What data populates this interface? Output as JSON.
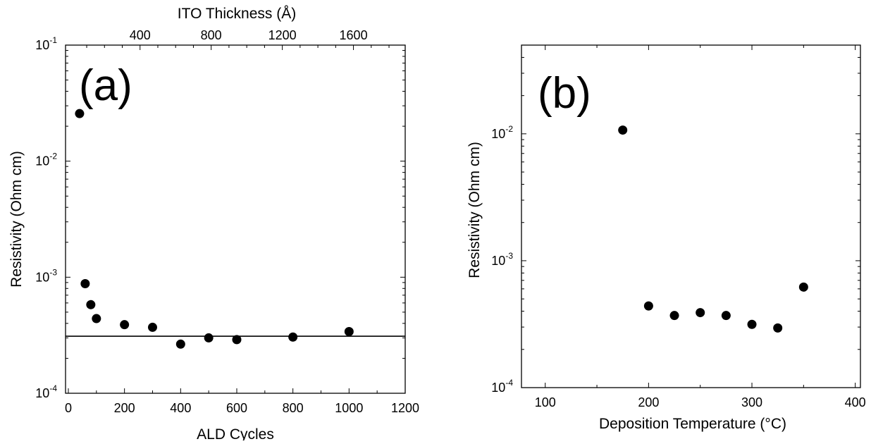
{
  "chart_data": [
    {
      "type": "scatter",
      "panel_label": "(a)",
      "xlabel": "ALD Cycles",
      "ylabel": "Resistivity (Ohm cm)",
      "x2label": "ITO Thickness (Å)",
      "xlim": [
        -10,
        1200
      ],
      "x2lim": [
        -19,
        1891
      ],
      "ylim": [
        0.0001,
        0.1
      ],
      "yscale": "log",
      "xticks": [
        0,
        200,
        400,
        600,
        800,
        1000,
        1200
      ],
      "x2ticks": [
        400,
        800,
        1200,
        1600
      ],
      "yticks": [
        {
          "value": 0.0001,
          "base": "10",
          "exp": "-4"
        },
        {
          "value": 0.001,
          "base": "10",
          "exp": "-3"
        },
        {
          "value": 0.01,
          "base": "10",
          "exp": "-2"
        },
        {
          "value": 0.1,
          "base": "10",
          "exp": "-1"
        }
      ],
      "hline": 0.00031,
      "points": [
        {
          "x": 40,
          "y": 0.0257
        },
        {
          "x": 60,
          "y": 0.00088
        },
        {
          "x": 80,
          "y": 0.00058
        },
        {
          "x": 100,
          "y": 0.00044
        },
        {
          "x": 200,
          "y": 0.00039
        },
        {
          "x": 300,
          "y": 0.00037
        },
        {
          "x": 400,
          "y": 0.000265
        },
        {
          "x": 500,
          "y": 0.0003
        },
        {
          "x": 600,
          "y": 0.00029
        },
        {
          "x": 800,
          "y": 0.000305
        },
        {
          "x": 1000,
          "y": 0.00034
        }
      ]
    },
    {
      "type": "scatter",
      "panel_label": "(b)",
      "xlabel": "Deposition Temperature (°C)",
      "ylabel": "Resistivity (Ohm cm)",
      "xlim": [
        77,
        405
      ],
      "ylim": [
        0.0001,
        0.05
      ],
      "yscale": "log",
      "xticks": [
        100,
        200,
        300,
        400
      ],
      "yticks": [
        {
          "value": 0.0001,
          "base": "10",
          "exp": "-4"
        },
        {
          "value": 0.001,
          "base": "10",
          "exp": "-3"
        },
        {
          "value": 0.01,
          "base": "10",
          "exp": "-2"
        }
      ],
      "points": [
        {
          "x": 175,
          "y": 0.0107
        },
        {
          "x": 200,
          "y": 0.00044
        },
        {
          "x": 225,
          "y": 0.00037
        },
        {
          "x": 250,
          "y": 0.00039
        },
        {
          "x": 275,
          "y": 0.00037
        },
        {
          "x": 300,
          "y": 0.000315
        },
        {
          "x": 325,
          "y": 0.000295
        },
        {
          "x": 350,
          "y": 0.00062
        }
      ]
    }
  ]
}
